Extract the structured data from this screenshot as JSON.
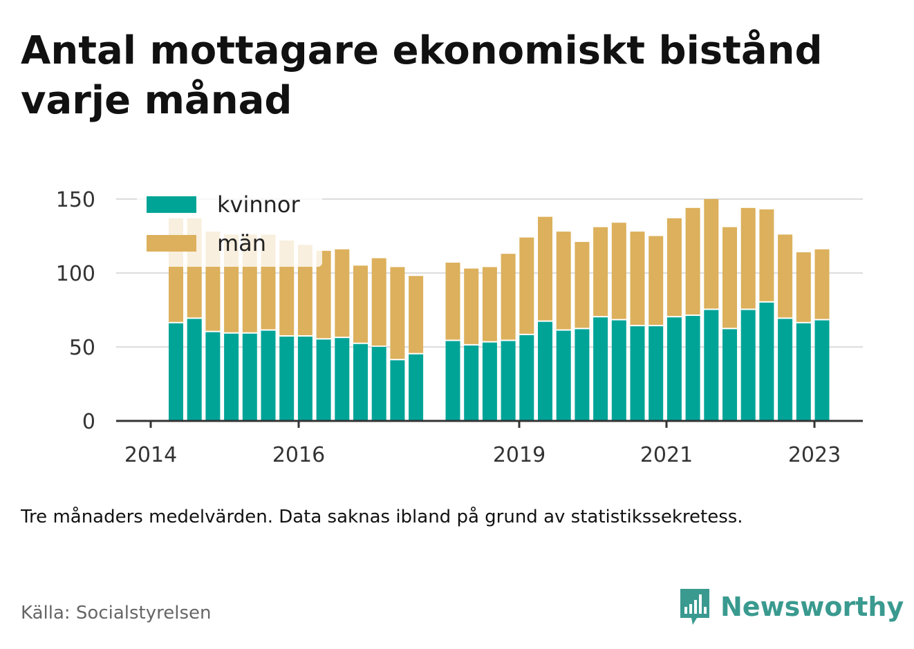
{
  "header": {
    "title": "Antal mottagare ekonomiskt bistånd varje månad"
  },
  "footer": {
    "note": "Tre månaders medelvärden. Data saknas ibland på grund av statistikssekretess.",
    "source": "Källa: Socialstyrelsen",
    "brand": "Newsworthy"
  },
  "colors": {
    "kvinnor": "#00a497",
    "man": "#dcb05c",
    "grid": "#dcdcdc",
    "axis": "#333333",
    "brand": "#3a9a8f"
  },
  "chart_data": {
    "type": "bar",
    "stacked": true,
    "ylim": [
      0,
      150
    ],
    "yticks": [
      0,
      50,
      100,
      150
    ],
    "xticks": [
      "2014",
      "2016",
      "2019",
      "2021",
      "2023"
    ],
    "legend": {
      "position": "top-left",
      "entries": [
        "kvinnor",
        "män"
      ]
    },
    "grid": true,
    "series": [
      {
        "name": "kvinnor",
        "values": [
          66,
          69,
          60,
          59,
          59,
          61,
          57,
          57,
          55,
          56,
          52,
          50,
          41,
          45,
          null,
          54,
          51,
          53,
          54,
          58,
          67,
          61,
          62,
          70,
          68,
          64,
          64,
          70,
          71,
          75,
          62,
          75,
          80,
          69,
          66,
          68
        ]
      },
      {
        "name": "män",
        "values": [
          71,
          68,
          68,
          67,
          67,
          65,
          65,
          62,
          60,
          60,
          53,
          60,
          63,
          53,
          null,
          53,
          52,
          51,
          59,
          66,
          71,
          67,
          59,
          61,
          66,
          64,
          61,
          67,
          73,
          75,
          69,
          69,
          63,
          57,
          48,
          48
        ]
      }
    ]
  }
}
